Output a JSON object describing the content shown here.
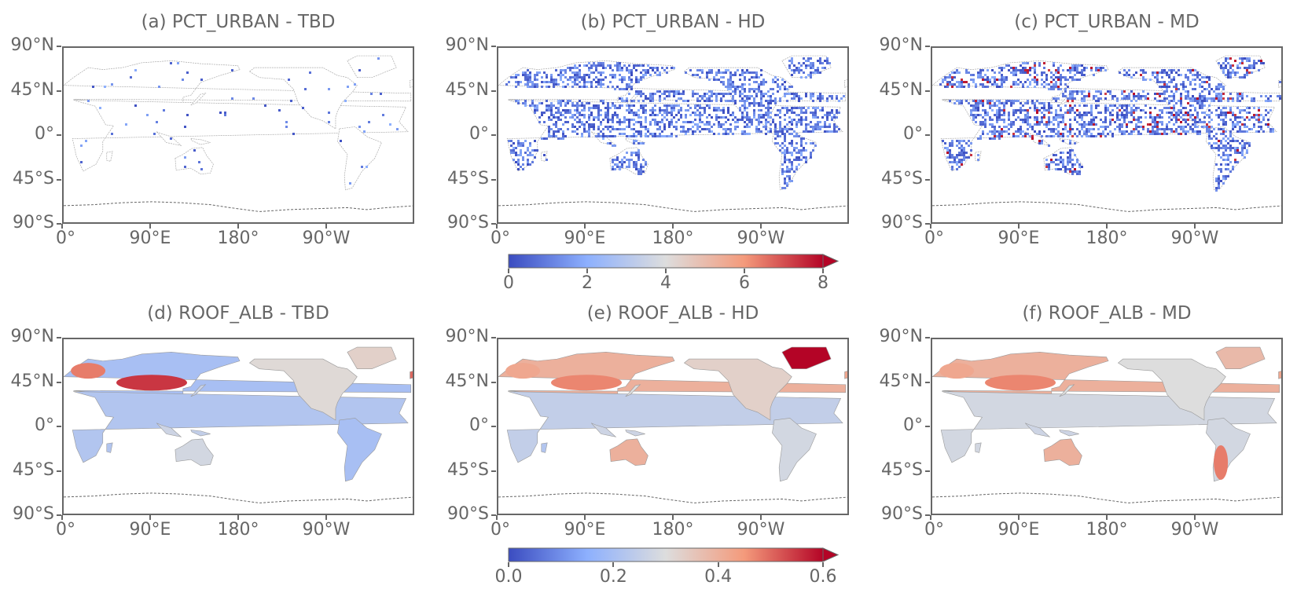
{
  "panels": [
    {
      "title": "(a) PCT_URBAN - TBD",
      "variant": "urban-light"
    },
    {
      "title": "(b) PCT_URBAN - HD",
      "variant": "urban-mid"
    },
    {
      "title": "(c) PCT_URBAN - MD",
      "variant": "urban-heavy"
    },
    {
      "title": "(d) ROOF_ALB - TBD",
      "variant": "alb-a"
    },
    {
      "title": "(e) ROOF_ALB - HD",
      "variant": "alb-b"
    },
    {
      "title": "(f) ROOF_ALB - MD",
      "variant": "alb-c"
    }
  ],
  "axes": {
    "lat_labels": [
      "90°N",
      "45°N",
      "0°",
      "45°S",
      "90°S"
    ],
    "lon_labels": [
      "0°",
      "90°E",
      "180°",
      "90°W"
    ]
  },
  "colorbars": [
    {
      "ticks": [
        "0",
        "2",
        "4",
        "6",
        "8"
      ],
      "range": [
        0,
        8
      ],
      "extend": "max"
    },
    {
      "ticks": [
        "0.0",
        "0.2",
        "0.4",
        "0.6"
      ],
      "range": [
        0,
        0.6
      ],
      "extend": "max"
    }
  ],
  "colormap": "coolwarm",
  "colors": {
    "low": "#3b4cc0",
    "mid": "#dddddd",
    "high": "#b40426",
    "outline": "#666666"
  }
}
